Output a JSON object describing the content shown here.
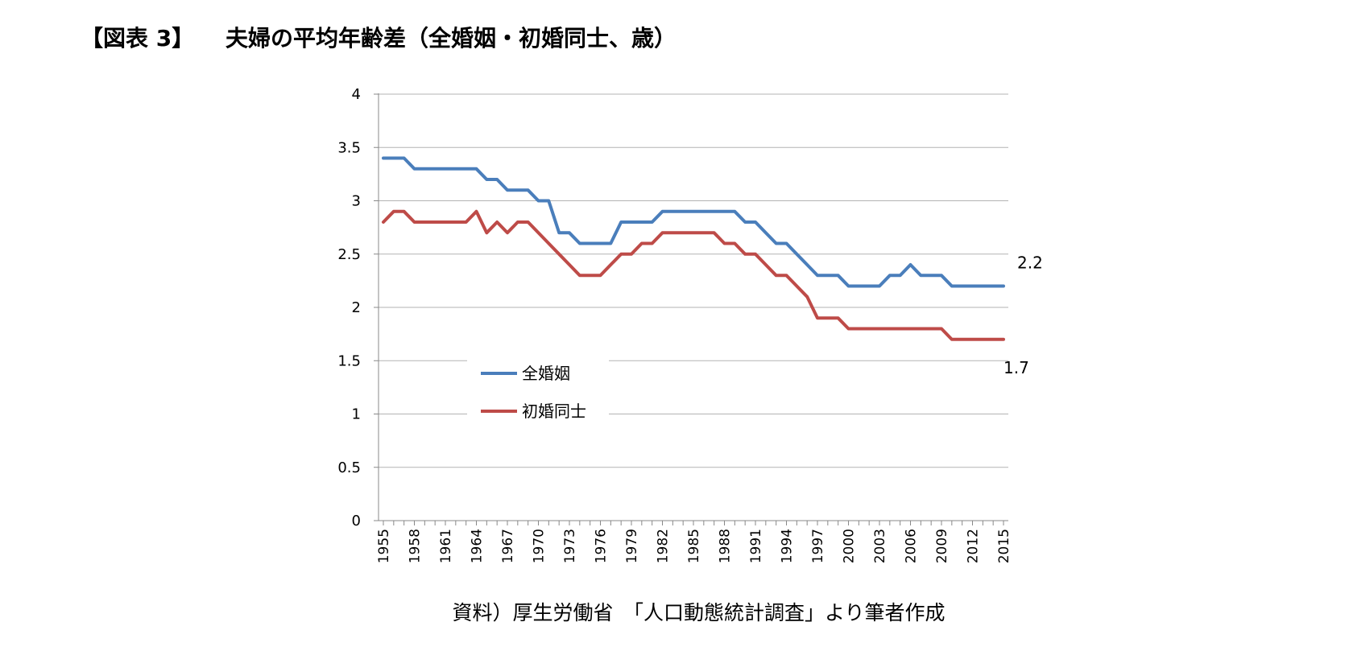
{
  "header": {
    "figure_label": "【図表 3】",
    "title": "夫婦の平均年齢差（全婚姻・初婚同士、歳）"
  },
  "source": "資料）厚生労働省　「人口動態統計調査」より筆者作成",
  "chart_data": {
    "type": "line",
    "title": "",
    "xlabel": "",
    "ylabel": "",
    "ylim": [
      0,
      4
    ],
    "y_ticks": [
      "0",
      "0.5",
      "1",
      "1.5",
      "2",
      "2.5",
      "3",
      "3.5",
      "4"
    ],
    "x_tick_labels": [
      "1955",
      "1958",
      "1961",
      "1964",
      "1967",
      "1970",
      "1973",
      "1976",
      "1979",
      "1982",
      "1985",
      "1988",
      "1991",
      "1994",
      "1997",
      "2000",
      "2003",
      "2006",
      "2009",
      "2012",
      "2015"
    ],
    "grid": "horizontal",
    "legend_position": "center-left",
    "x": [
      1955,
      1956,
      1957,
      1958,
      1959,
      1960,
      1961,
      1962,
      1963,
      1964,
      1965,
      1966,
      1967,
      1968,
      1969,
      1970,
      1971,
      1972,
      1973,
      1974,
      1975,
      1976,
      1977,
      1978,
      1979,
      1980,
      1981,
      1982,
      1983,
      1984,
      1985,
      1986,
      1987,
      1988,
      1989,
      1990,
      1991,
      1992,
      1993,
      1994,
      1995,
      1996,
      1997,
      1998,
      1999,
      2000,
      2001,
      2002,
      2003,
      2004,
      2005,
      2006,
      2007,
      2008,
      2009,
      2010,
      2011,
      2012,
      2013,
      2014,
      2015
    ],
    "series": [
      {
        "name": "全婚姻",
        "color": "#4a7ebb",
        "values": [
          3.4,
          3.4,
          3.4,
          3.3,
          3.3,
          3.3,
          3.3,
          3.3,
          3.3,
          3.3,
          3.2,
          3.2,
          3.1,
          3.1,
          3.1,
          3.0,
          3.0,
          2.7,
          2.7,
          2.6,
          2.6,
          2.6,
          2.6,
          2.8,
          2.8,
          2.8,
          2.8,
          2.9,
          2.9,
          2.9,
          2.9,
          2.9,
          2.9,
          2.9,
          2.9,
          2.8,
          2.8,
          2.7,
          2.6,
          2.6,
          2.5,
          2.4,
          2.3,
          2.3,
          2.3,
          2.2,
          2.2,
          2.2,
          2.2,
          2.3,
          2.3,
          2.4,
          2.3,
          2.3,
          2.3,
          2.2,
          2.2,
          2.2,
          2.2,
          2.2,
          2.2
        ],
        "end_label": "2.2"
      },
      {
        "name": "初婚同士",
        "color": "#be4b48",
        "values": [
          2.8,
          2.9,
          2.9,
          2.8,
          2.8,
          2.8,
          2.8,
          2.8,
          2.8,
          2.9,
          2.7,
          2.8,
          2.7,
          2.8,
          2.8,
          2.7,
          2.6,
          2.5,
          2.4,
          2.3,
          2.3,
          2.3,
          2.4,
          2.5,
          2.5,
          2.6,
          2.6,
          2.7,
          2.7,
          2.7,
          2.7,
          2.7,
          2.7,
          2.6,
          2.6,
          2.5,
          2.5,
          2.4,
          2.3,
          2.3,
          2.2,
          2.1,
          1.9,
          1.9,
          1.9,
          1.8,
          1.8,
          1.8,
          1.8,
          1.8,
          1.8,
          1.8,
          1.8,
          1.8,
          1.8,
          1.7,
          1.7,
          1.7,
          1.7,
          1.7,
          1.7
        ],
        "end_label": "1.7"
      }
    ]
  }
}
